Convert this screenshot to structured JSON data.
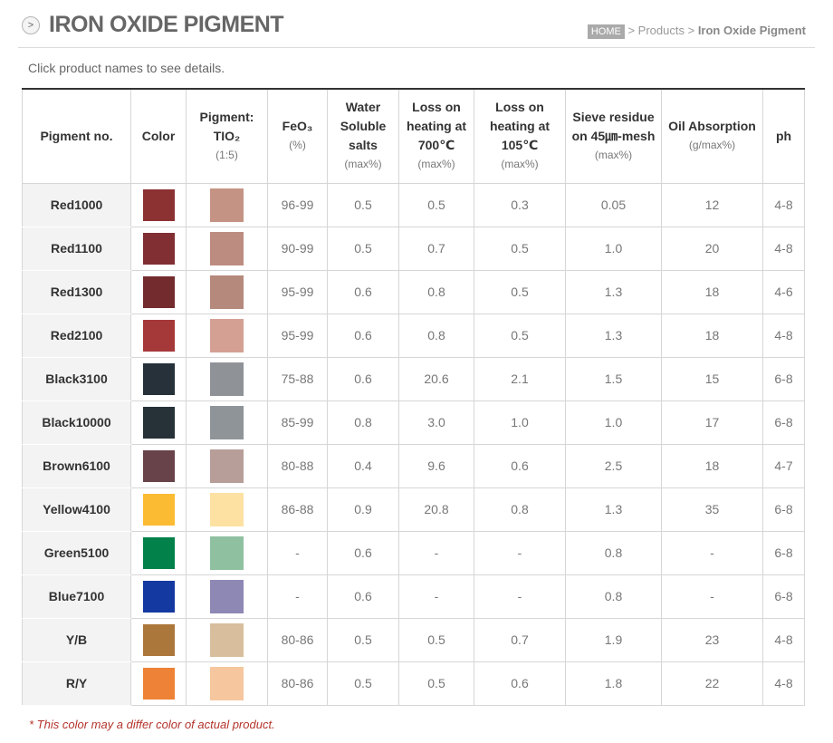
{
  "header": {
    "title": "IRON OXIDE PIGMENT",
    "title_icon": ">",
    "breadcrumb": {
      "home": "HOME",
      "sep1": ">",
      "products": "Products",
      "sep2": ">",
      "current": "Iron Oxide Pigment"
    }
  },
  "intro_text": "Click product names to see details.",
  "table": {
    "columns": [
      {
        "label": "Pigment no.",
        "unit": ""
      },
      {
        "label": "Color",
        "unit": ""
      },
      {
        "label": "Pigment: TIO₂",
        "unit": "(1:5)"
      },
      {
        "label": "FeO₃",
        "unit": "(%)"
      },
      {
        "label": "Water Soluble salts",
        "unit": "(max%)"
      },
      {
        "label": "Loss on heating at 700℃",
        "unit": "(max%)"
      },
      {
        "label": "Loss on heating at 105℃",
        "unit": "(max%)"
      },
      {
        "label": "Sieve residue on 45㎛-mesh",
        "unit": "(max%)"
      },
      {
        "label": "Oil Absorption",
        "unit": "(g/max%)"
      },
      {
        "label": "ph",
        "unit": ""
      }
    ],
    "rows": [
      {
        "name": "Red1000",
        "color": "#8d3233",
        "tint": "#c59384",
        "feo3": "96-99",
        "water": "0.5",
        "loss700": "0.5",
        "loss105": "0.3",
        "sieve": "0.05",
        "oil": "12",
        "ph": "4-8"
      },
      {
        "name": "Red1100",
        "color": "#812f33",
        "tint": "#bd8c80",
        "feo3": "90-99",
        "water": "0.5",
        "loss700": "0.7",
        "loss105": "0.5",
        "sieve": "1.0",
        "oil": "20",
        "ph": "4-8"
      },
      {
        "name": "Red1300",
        "color": "#742b2e",
        "tint": "#b5897c",
        "feo3": "95-99",
        "water": "0.6",
        "loss700": "0.8",
        "loss105": "0.5",
        "sieve": "1.3",
        "oil": "18",
        "ph": "4-6"
      },
      {
        "name": "Red2100",
        "color": "#a5393a",
        "tint": "#d4a093",
        "feo3": "95-99",
        "water": "0.6",
        "loss700": "0.8",
        "loss105": "0.5",
        "sieve": "1.3",
        "oil": "18",
        "ph": "4-8"
      },
      {
        "name": "Black3100",
        "color": "#263139",
        "tint": "#8f9398",
        "feo3": "75-88",
        "water": "0.6",
        "loss700": "20.6",
        "loss105": "2.1",
        "sieve": "1.5",
        "oil": "15",
        "ph": "6-8"
      },
      {
        "name": "Black10000",
        "color": "#263138",
        "tint": "#8f9499",
        "feo3": "85-99",
        "water": "0.8",
        "loss700": "3.0",
        "loss105": "1.0",
        "sieve": "1.0",
        "oil": "17",
        "ph": "6-8"
      },
      {
        "name": "Brown6100",
        "color": "#69434a",
        "tint": "#b79e98",
        "feo3": "80-88",
        "water": "0.4",
        "loss700": "9.6",
        "loss105": "0.6",
        "sieve": "2.5",
        "oil": "18",
        "ph": "4-7"
      },
      {
        "name": "Yellow4100",
        "color": "#fbbb33",
        "tint": "#fde1a3",
        "feo3": "86-88",
        "water": "0.9",
        "loss700": "20.8",
        "loss105": "0.8",
        "sieve": "1.3",
        "oil": "35",
        "ph": "6-8"
      },
      {
        "name": "Green5100",
        "color": "#02824a",
        "tint": "#8fc1a1",
        "feo3": "-",
        "water": "0.6",
        "loss700": "-",
        "loss105": "-",
        "sieve": "0.8",
        "oil": "-",
        "ph": "6-8"
      },
      {
        "name": "Blue7100",
        "color": "#1439a0",
        "tint": "#8e88b5",
        "feo3": "-",
        "water": "0.6",
        "loss700": "-",
        "loss105": "-",
        "sieve": "0.8",
        "oil": "-",
        "ph": "6-8"
      },
      {
        "name": "Y/B",
        "color": "#ac773b",
        "tint": "#d8be9c",
        "feo3": "80-86",
        "water": "0.5",
        "loss700": "0.5",
        "loss105": "0.7",
        "sieve": "1.9",
        "oil": "23",
        "ph": "4-8"
      },
      {
        "name": "R/Y",
        "color": "#ee8236",
        "tint": "#f6c69e",
        "feo3": "80-86",
        "water": "0.5",
        "loss700": "0.5",
        "loss105": "0.6",
        "sieve": "1.8",
        "oil": "22",
        "ph": "4-8"
      }
    ]
  },
  "footnote": "* This color may a differ color of actual product."
}
